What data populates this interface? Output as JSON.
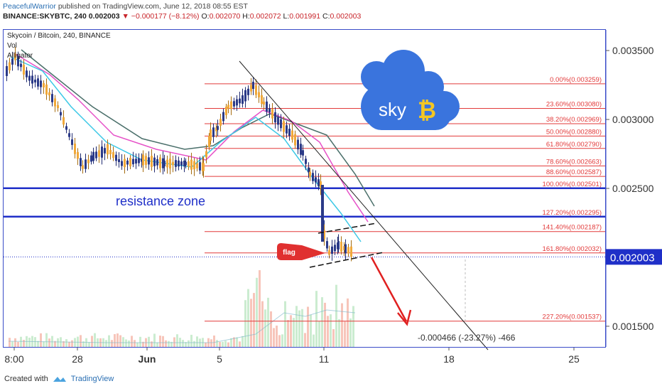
{
  "header": {
    "author": "PeacefulWarrior",
    "published": "published on TradingView.com, June 12, 2018 08:55 EST",
    "symbol": "BINANCE:SKYBTC, 240",
    "price": "0.002003",
    "change": "▼ −0.000177 (−8.12%)",
    "o_label": "O:",
    "o": "0.002070",
    "h_label": "H:",
    "h": "0.002072",
    "l_label": "L:",
    "l": "0.001991",
    "c_label": "C:",
    "c": "0.002003"
  },
  "chart_title": "Skycoin / Bitcoin, 240, BINANCE",
  "indicators": [
    "Vol",
    "Alligator"
  ],
  "colors": {
    "up": "#f0a83a",
    "down": "#2b3a88",
    "fib": "#e23a3a",
    "zone": "#1f2fc8",
    "lips": "#3cc8e6",
    "teeth": "#e651c8",
    "jaw": "#4a6f6a",
    "arrow": "#e02020",
    "price_tag": "#1f2fc8",
    "cloud": "#3a74dd",
    "bitcoin": "#f4c622"
  },
  "chart_data": {
    "type": "candlestick",
    "symbol": "SKYBTC",
    "timeframe": "240",
    "exchange": "BINANCE",
    "ylim": [
      0.00135,
      0.00365
    ],
    "y_ticks": [
      "0.003500",
      "0.003000",
      "0.002500",
      "0.001500"
    ],
    "y_tick_values": [
      0.0035,
      0.003,
      0.0025,
      0.0015
    ],
    "x_ticks": [
      "8:00",
      "28",
      "Jun",
      "5",
      "11",
      "18",
      "25"
    ],
    "last_price": "0.002003",
    "last_price_value": 0.002003,
    "fib_levels": [
      {
        "label": "0.00%(0.003259)",
        "value": 0.003259
      },
      {
        "label": "23.60%(0.003080)",
        "value": 0.00308
      },
      {
        "label": "38.20%(0.002969)",
        "value": 0.002969
      },
      {
        "label": "50.00%(0.002880)",
        "value": 0.00288
      },
      {
        "label": "61.80%(0.002790)",
        "value": 0.00279
      },
      {
        "label": "78.60%(0.002663)",
        "value": 0.002663
      },
      {
        "label": "88.60%(0.002587)",
        "value": 0.002587
      },
      {
        "label": "100.00%(0.002501)",
        "value": 0.002501
      },
      {
        "label": "127.20%(0.002295)",
        "value": 0.002295
      },
      {
        "label": "141.40%(0.002187)",
        "value": 0.002187
      },
      {
        "label": "161.80%(0.002032)",
        "value": 0.002032
      },
      {
        "label": "227.20%(0.001537)",
        "value": 0.001537
      }
    ],
    "resistance_zone": {
      "label": "resistance zone",
      "upper": 0.002501,
      "lower": 0.002295
    },
    "annotations": {
      "flag": "flag",
      "measure": "-0.000466 (-23.27%) -466",
      "logo_text": "sky"
    }
  },
  "footer": {
    "created_with": "Created with",
    "brand": "TradingView"
  }
}
